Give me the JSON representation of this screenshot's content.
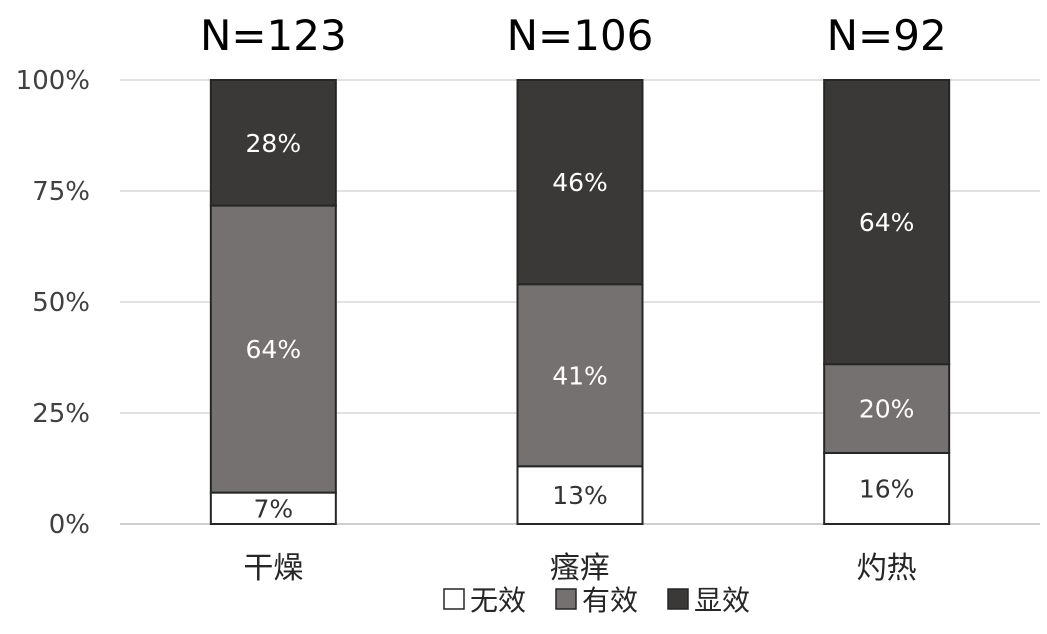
{
  "chart_data": {
    "type": "bar",
    "stacked": true,
    "percent": true,
    "categories": [
      "干燥",
      "瘙痒",
      "灼热"
    ],
    "sample_sizes": [
      "N=123",
      "N=106",
      "N=92"
    ],
    "series": [
      {
        "name": "无效",
        "values": [
          7,
          13,
          16
        ],
        "labels": [
          "7%",
          "13%",
          "16%"
        ],
        "color": "#ffffff",
        "label_color": "#333333"
      },
      {
        "name": "有效",
        "values": [
          64,
          41,
          20
        ],
        "labels": [
          "64%",
          "41%",
          "20%"
        ],
        "color": "#767171",
        "label_color": "#ffffff"
      },
      {
        "name": "显效",
        "values": [
          28,
          46,
          64
        ],
        "labels": [
          "28%",
          "46%",
          "64%"
        ],
        "color": "#3b3838",
        "label_color": "#ffffff"
      }
    ],
    "y_ticks": [
      "0%",
      "25%",
      "50%",
      "75%",
      "100%"
    ],
    "ylim": [
      0,
      100
    ],
    "grid": true,
    "legend_position": "bottom",
    "bar_border_color": "#262626",
    "grid_color": "#d9d9d9"
  }
}
